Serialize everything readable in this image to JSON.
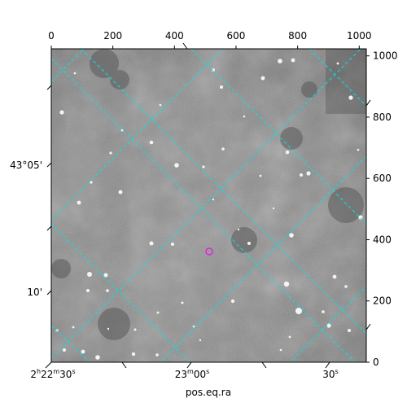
{
  "figure": {
    "xlabel": "pos.eq.ra",
    "ylabel": "",
    "pixel_x_ticks": [
      "0",
      "200",
      "400",
      "600",
      "800",
      "1000"
    ],
    "pixel_y_ticks": [
      "0",
      "200",
      "400",
      "600",
      "800",
      "1000"
    ],
    "ra_ticks": [
      {
        "h": "2",
        "m": "22",
        "s": "30",
        "label": "2h22m30s"
      },
      {
        "m": "23",
        "s": "00",
        "label": "23m00s"
      },
      {
        "s": "30",
        "label": "30s"
      }
    ],
    "dec_ticks": [
      "43°05'",
      "10'"
    ],
    "colors": {
      "grid": "#00e5e5",
      "marker": "#e020e0",
      "background_sky": "#8a8a8a",
      "frame": "#000000"
    },
    "marker": {
      "shape": "circle",
      "icon": "target-circle-icon"
    }
  }
}
